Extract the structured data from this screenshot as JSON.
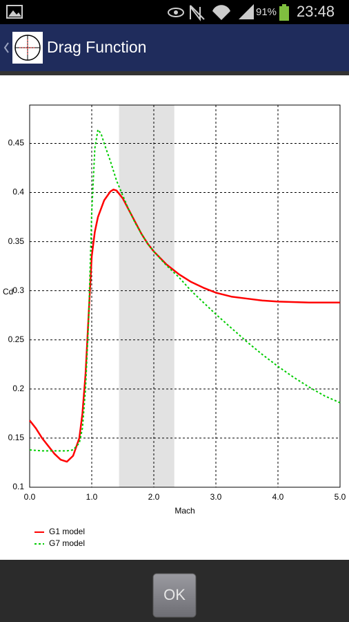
{
  "status_bar": {
    "battery": "91%",
    "time": "23:48"
  },
  "action_bar": {
    "title": "Drag Function"
  },
  "chart_data": {
    "type": "line",
    "x_label": "Mach",
    "y_label": "Cd",
    "xlim": [
      0,
      5
    ],
    "ylim": [
      0.1,
      0.489
    ],
    "xticks": [
      {
        "value": 0,
        "label": "0.0"
      },
      {
        "value": 1,
        "label": "1.0"
      },
      {
        "value": 2,
        "label": "2.0"
      },
      {
        "value": 3,
        "label": "3.0"
      },
      {
        "value": 4,
        "label": "4.0"
      },
      {
        "value": 5,
        "label": "5.0"
      }
    ],
    "yticks": [
      0.1,
      0.15,
      0.2,
      0.25,
      0.3,
      0.35,
      0.4,
      0.45
    ],
    "grid": true,
    "highlight_range": [
      1.44,
      2.33
    ],
    "legend": "bottom-left",
    "series": [
      {
        "name": "G1 model",
        "color": "#ff0000",
        "style": "solid",
        "x": [
          0,
          0.1,
          0.2,
          0.3,
          0.4,
          0.5,
          0.6,
          0.7,
          0.8,
          0.85,
          0.9,
          0.95,
          1.0,
          1.05,
          1.1,
          1.2,
          1.3,
          1.35,
          1.4,
          1.5,
          1.6,
          1.7,
          1.8,
          1.9,
          2.0,
          2.2,
          2.4,
          2.6,
          2.8,
          3.0,
          3.25,
          3.5,
          3.75,
          4.0,
          4.5,
          5.0
        ],
        "values": [
          0.168,
          0.16,
          0.15,
          0.142,
          0.134,
          0.128,
          0.126,
          0.132,
          0.15,
          0.175,
          0.215,
          0.275,
          0.335,
          0.36,
          0.375,
          0.392,
          0.401,
          0.403,
          0.402,
          0.394,
          0.382,
          0.37,
          0.358,
          0.348,
          0.34,
          0.327,
          0.317,
          0.309,
          0.303,
          0.298,
          0.294,
          0.292,
          0.29,
          0.289,
          0.288,
          0.288
        ]
      },
      {
        "name": "G7 model",
        "color": "#00cc00",
        "style": "dotted",
        "x": [
          0,
          0.2,
          0.4,
          0.6,
          0.7,
          0.8,
          0.85,
          0.9,
          0.95,
          1.0,
          1.05,
          1.1,
          1.15,
          1.2,
          1.3,
          1.4,
          1.5,
          1.6,
          1.7,
          1.8,
          1.9,
          2.0,
          2.2,
          2.4,
          2.6,
          2.8,
          3.0,
          3.25,
          3.5,
          3.75,
          4.0,
          4.25,
          4.5,
          4.75,
          5.0
        ],
        "values": [
          0.138,
          0.137,
          0.137,
          0.137,
          0.138,
          0.145,
          0.16,
          0.2,
          0.27,
          0.38,
          0.445,
          0.464,
          0.46,
          0.45,
          0.432,
          0.412,
          0.397,
          0.382,
          0.369,
          0.358,
          0.348,
          0.34,
          0.326,
          0.314,
          0.3,
          0.288,
          0.276,
          0.262,
          0.248,
          0.235,
          0.223,
          0.212,
          0.202,
          0.193,
          0.186
        ]
      }
    ]
  },
  "button": {
    "label": "OK"
  }
}
